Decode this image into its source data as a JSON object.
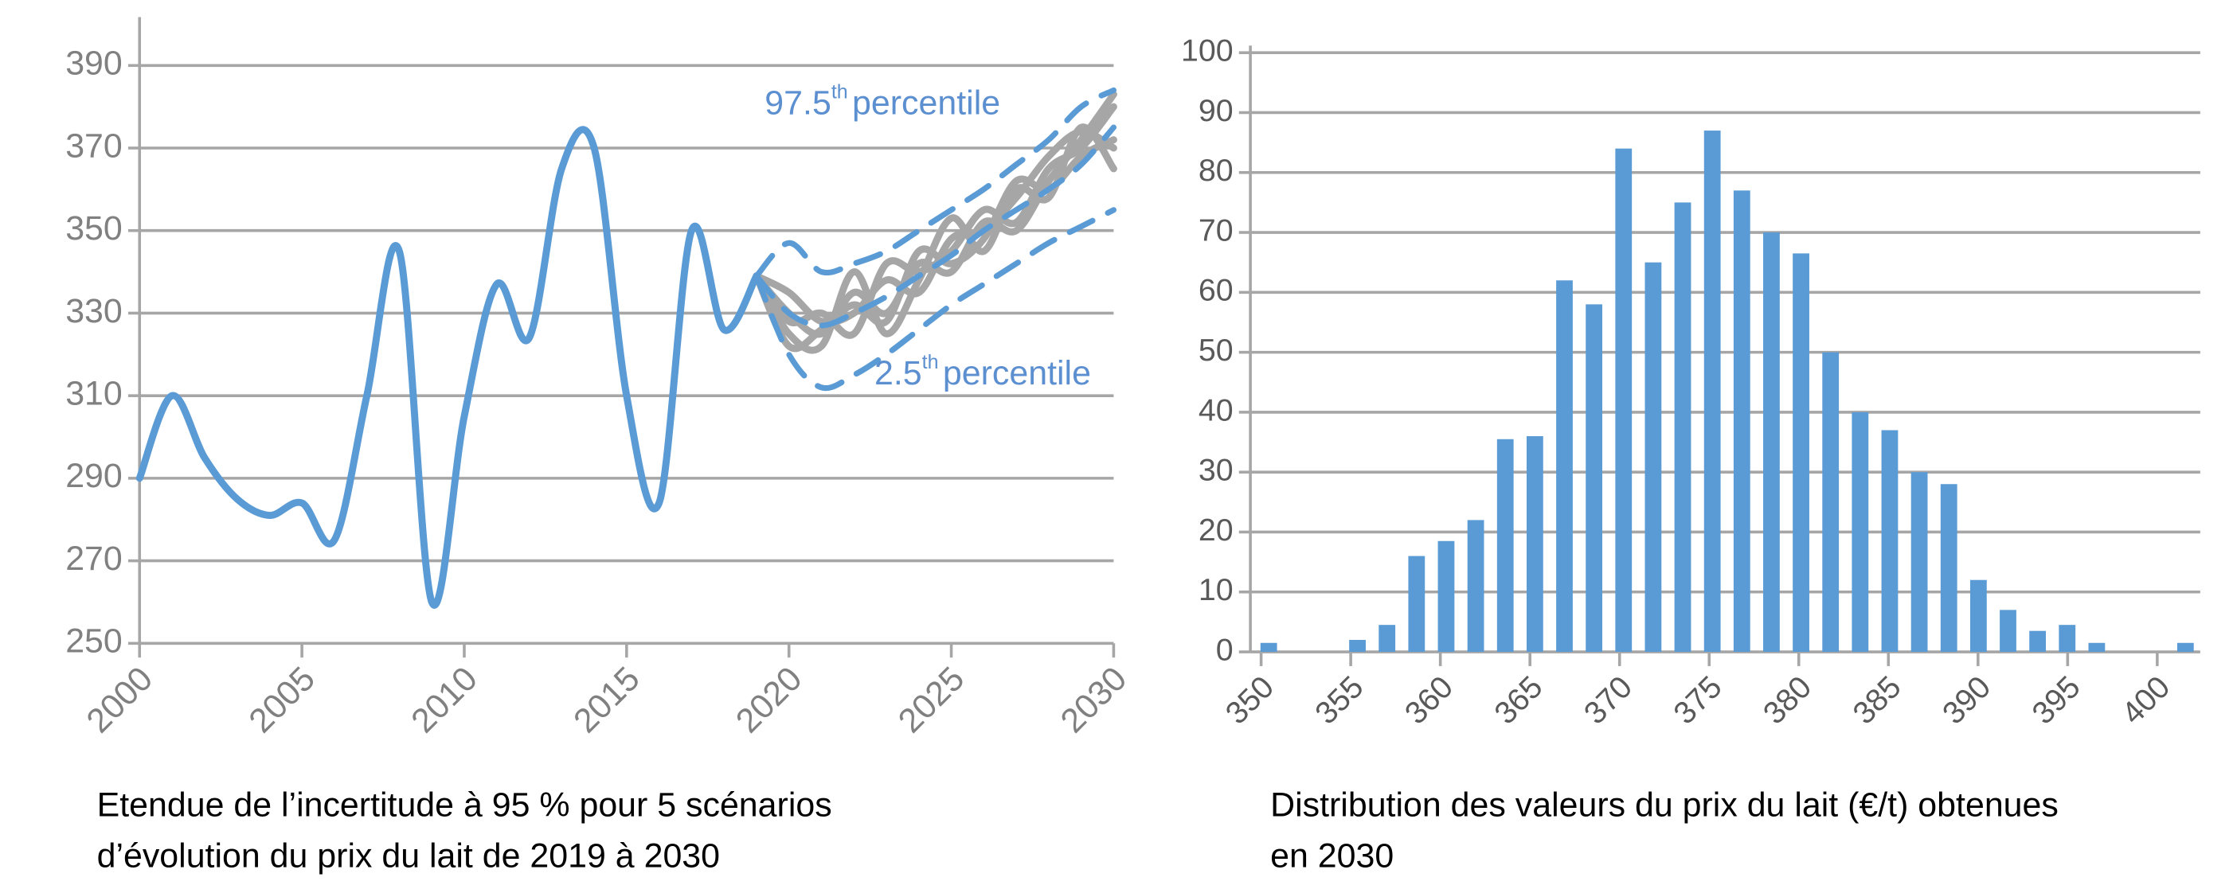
{
  "chart_data": [
    {
      "type": "line",
      "caption": [
        "Etendue de l’incertitude à 95 % pour 5 scénarios",
        "d’évolution du prix du lait de 2019 à 2030"
      ],
      "xlim": [
        2000,
        2030
      ],
      "xticks": [
        2000,
        2005,
        2010,
        2015,
        2020,
        2025,
        2030
      ],
      "ylim": [
        250,
        400
      ],
      "yticks": [
        250,
        270,
        290,
        310,
        330,
        350,
        370,
        390
      ],
      "grid": true,
      "annotations": [
        {
          "label": "97.5",
          "superscript": "th",
          "text": "percentile"
        },
        {
          "label": "2.5",
          "superscript": "th",
          "text": "percentile"
        }
      ],
      "series": [
        {
          "color": "#a6a6a6",
          "style": "solid",
          "x": [
            2019,
            2020,
            2021,
            2022,
            2023,
            2024,
            2025,
            2026,
            2027,
            2028,
            2029,
            2030
          ],
          "values": [
            339,
            330,
            325,
            335,
            330,
            342,
            340,
            352,
            350,
            362,
            372,
            383
          ]
        },
        {
          "color": "#a6a6a6",
          "style": "solid",
          "x": [
            2019,
            2020,
            2021,
            2022,
            2023,
            2024,
            2025,
            2026,
            2027,
            2028,
            2029,
            2030
          ],
          "values": [
            339,
            325,
            322,
            340,
            325,
            338,
            353,
            345,
            360,
            358,
            375,
            365
          ]
        },
        {
          "color": "#a6a6a6",
          "style": "solid",
          "x": [
            2019,
            2020,
            2021,
            2022,
            2023,
            2024,
            2025,
            2026,
            2027,
            2028,
            2029,
            2030
          ],
          "values": [
            339,
            335,
            328,
            330,
            338,
            335,
            348,
            350,
            358,
            368,
            374,
            370
          ]
        },
        {
          "color": "#a6a6a6",
          "style": "solid",
          "x": [
            2019,
            2020,
            2021,
            2022,
            2023,
            2024,
            2025,
            2026,
            2027,
            2028,
            2029,
            2030
          ],
          "values": [
            339,
            328,
            330,
            325,
            342,
            340,
            345,
            355,
            352,
            365,
            370,
            380
          ]
        },
        {
          "color": "#a6a6a6",
          "style": "solid",
          "x": [
            2019,
            2020,
            2021,
            2022,
            2023,
            2024,
            2025,
            2026,
            2027,
            2028,
            2029,
            2030
          ],
          "values": [
            339,
            322,
            326,
            332,
            328,
            345,
            342,
            348,
            362,
            360,
            368,
            372
          ]
        },
        {
          "color": "#5b9bd5",
          "style": "dashed",
          "x": [
            2019,
            2020,
            2021,
            2022,
            2023,
            2024,
            2025,
            2026,
            2027,
            2028,
            2029,
            2030
          ],
          "values": [
            339,
            347,
            340,
            342,
            345,
            350,
            355,
            360,
            366,
            372,
            380,
            384
          ]
        },
        {
          "color": "#5b9bd5",
          "style": "dashed",
          "x": [
            2019,
            2020,
            2021,
            2022,
            2023,
            2024,
            2025,
            2026,
            2027,
            2028,
            2029,
            2030
          ],
          "values": [
            339,
            330,
            327,
            330,
            334,
            339,
            344,
            350,
            355,
            360,
            366,
            375
          ]
        },
        {
          "color": "#5b9bd5",
          "style": "dashed",
          "x": [
            2019,
            2020,
            2021,
            2022,
            2023,
            2024,
            2025,
            2026,
            2027,
            2028,
            2029,
            2030
          ],
          "values": [
            339,
            320,
            312,
            315,
            320,
            326,
            332,
            337,
            342,
            347,
            351,
            355
          ]
        },
        {
          "color": "#5b9bd5",
          "style": "solid",
          "x": [
            2000,
            2001,
            2002,
            2003,
            2004,
            2005,
            2006,
            2007,
            2008,
            2009,
            2010,
            2011,
            2012,
            2013,
            2014,
            2015,
            2016,
            2017,
            2018,
            2019
          ],
          "values": [
            290,
            310,
            295,
            285,
            281,
            284,
            275,
            310,
            345,
            260,
            305,
            337,
            324,
            365,
            370,
            310,
            284,
            350,
            326,
            339
          ]
        }
      ]
    },
    {
      "type": "histogram",
      "caption": [
        "Distribution des valeurs du prix du lait (€/t) obtenues",
        "en 2030"
      ],
      "color": "#5b9bd5",
      "bins": [
        349.6,
        351.25,
        352.9,
        354.55,
        356.2,
        357.85,
        359.5,
        361.15,
        362.8,
        364.45,
        366.1,
        367.75,
        369.4,
        371.05,
        372.7,
        374.35,
        376,
        377.65,
        379.3,
        380.95,
        382.6,
        384.25,
        385.9,
        387.55,
        389.2,
        390.85,
        392.5,
        394.15,
        395.8,
        397.45,
        399.1,
        400.75,
        402.4
      ],
      "values": [
        1.5,
        0,
        0,
        2,
        4.5,
        16,
        18.5,
        22,
        35.5,
        36,
        62,
        58,
        84,
        65,
        75,
        87,
        77,
        70,
        66.5,
        50,
        40,
        37,
        30,
        28,
        12,
        7,
        3.5,
        4.5,
        1.5,
        0,
        0,
        1.5
      ],
      "xlim": [
        349.4,
        402.4
      ],
      "xticks": [
        350,
        355,
        360,
        365,
        370,
        375,
        380,
        385,
        390,
        395,
        400
      ],
      "ylim": [
        0,
        100
      ],
      "yticks": [
        0,
        10,
        20,
        30,
        40,
        50,
        60,
        70,
        80,
        90,
        100
      ],
      "grid": true
    }
  ]
}
